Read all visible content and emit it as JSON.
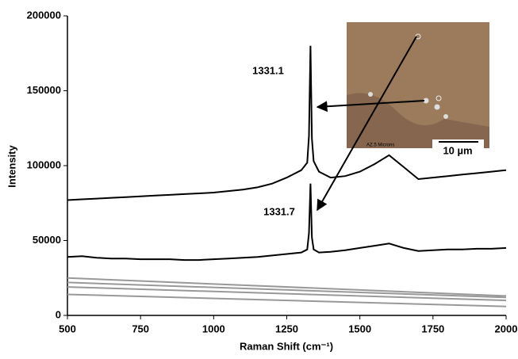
{
  "chart_data": {
    "type": "line",
    "y_label": "Intensity",
    "x_label": "Raman Shift (cm⁻¹)",
    "annotations": [
      "1331.1",
      "1331.7",
      "10 µm",
      "AZ.5 Microns"
    ],
    "x": [
      500,
      550,
      600,
      650,
      700,
      750,
      800,
      850,
      900,
      950,
      1000,
      1050,
      1100,
      1150,
      1200,
      1250,
      1300,
      1320,
      1326,
      1331,
      1336,
      1342,
      1360,
      1400,
      1450,
      1500,
      1550,
      1600,
      1650,
      1700,
      1750,
      1800,
      1850,
      1900,
      1950,
      2000
    ],
    "series": [
      {
        "color": "#000000",
        "values": [
          77000,
          77500,
          78000,
          78500,
          79000,
          79500,
          80000,
          80500,
          81000,
          81500,
          82000,
          83000,
          84000,
          85500,
          88000,
          92000,
          97000,
          102000,
          120000,
          180000,
          118000,
          103000,
          96000,
          92000,
          93000,
          96000,
          101000,
          107000,
          99000,
          91000,
          92000,
          93000,
          94000,
          95000,
          96000,
          97000
        ]
      },
      {
        "color": "#000000",
        "values": [
          39000,
          39500,
          38500,
          38000,
          38000,
          37500,
          37500,
          37500,
          37000,
          37000,
          37500,
          38000,
          38500,
          39000,
          40000,
          41000,
          42000,
          44000,
          55000,
          88000,
          52000,
          44000,
          42000,
          42500,
          43500,
          45000,
          46500,
          48000,
          45000,
          43000,
          43500,
          44000,
          44000,
          44500,
          44500,
          45000
        ]
      },
      {
        "color": "#999999",
        "x": [
          500,
          2000
        ],
        "values": [
          25000,
          13000
        ]
      },
      {
        "color": "#999999",
        "x": [
          500,
          2000
        ],
        "values": [
          22000,
          12000
        ]
      },
      {
        "color": "#999999",
        "x": [
          500,
          2000
        ],
        "values": [
          19000,
          10000
        ]
      },
      {
        "color": "#999999",
        "x": [
          500,
          2000
        ],
        "values": [
          14000,
          6000
        ]
      }
    ],
    "xlim": [
      500,
      2000
    ],
    "xticks": [
      500,
      750,
      1000,
      1250,
      1500,
      1750,
      2000
    ],
    "ylim": [
      0,
      200000
    ],
    "yticks": [
      0,
      50000,
      100000,
      150000,
      200000
    ]
  }
}
